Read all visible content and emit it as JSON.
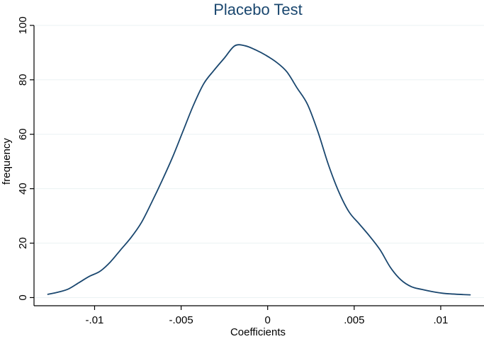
{
  "chart_data": {
    "type": "line",
    "title": "Placebo Test",
    "xlabel": "Coefficients",
    "ylabel": "frequency",
    "xlim": [
      -0.0135,
      0.0125
    ],
    "ylim": [
      -3,
      101
    ],
    "xticks": [
      {
        "value": -0.01,
        "label": "-.01"
      },
      {
        "value": -0.005,
        "label": "-.005"
      },
      {
        "value": 0,
        "label": "0"
      },
      {
        "value": 0.005,
        "label": ".005"
      },
      {
        "value": 0.01,
        "label": ".01"
      }
    ],
    "yticks": [
      {
        "value": 0,
        "label": "0"
      },
      {
        "value": 20,
        "label": "20"
      },
      {
        "value": 40,
        "label": "40"
      },
      {
        "value": 60,
        "label": "60"
      },
      {
        "value": 80,
        "label": "80"
      },
      {
        "value": 100,
        "label": "100"
      }
    ],
    "grid": true,
    "series": [
      {
        "color": "#1a476f",
        "x": [
          -0.0127,
          -0.0121,
          -0.0115,
          -0.0109,
          -0.0103,
          -0.0097,
          -0.0091,
          -0.0085,
          -0.0079,
          -0.0073,
          -0.0067,
          -0.0061,
          -0.0055,
          -0.0049,
          -0.0043,
          -0.0037,
          -0.0031,
          -0.0025,
          -0.0019,
          -0.0013,
          -0.0007,
          -0.0001,
          0.0005,
          0.0011,
          0.0017,
          0.0023,
          0.0029,
          0.0035,
          0.0041,
          0.0047,
          0.0053,
          0.0059,
          0.0065,
          0.0071,
          0.0077,
          0.0083,
          0.0089,
          0.0095,
          0.0101,
          0.0107,
          0.0113,
          0.0117
        ],
        "y": [
          1.2,
          2.0,
          3.2,
          5.5,
          7.8,
          9.6,
          13,
          17.5,
          22,
          27.5,
          35,
          43,
          51.5,
          61,
          70.5,
          78.5,
          83.5,
          88,
          92.5,
          92.5,
          91,
          89,
          86.5,
          83,
          77,
          71,
          61,
          49,
          39,
          31.5,
          27,
          22.5,
          17.5,
          11,
          6.5,
          4,
          3,
          2.2,
          1.6,
          1.3,
          1.1,
          1.0
        ]
      }
    ]
  }
}
